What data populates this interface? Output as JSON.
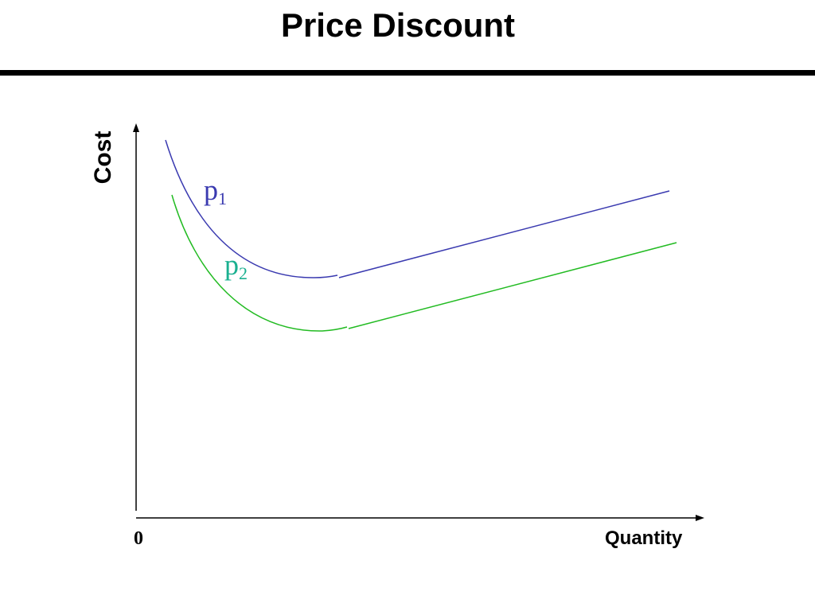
{
  "title": "Price Discount",
  "axes": {
    "y_label": "Cost",
    "x_label": "Quantity",
    "origin_label": "0"
  },
  "curves": [
    {
      "name_base": "p",
      "name_sub": "1",
      "color": "#3a3ab0"
    },
    {
      "name_base": "p",
      "name_sub": "2",
      "color": "#22bb22"
    }
  ],
  "label_colors": {
    "p1": "#3a3ab0",
    "p2": "#1ab090"
  }
}
